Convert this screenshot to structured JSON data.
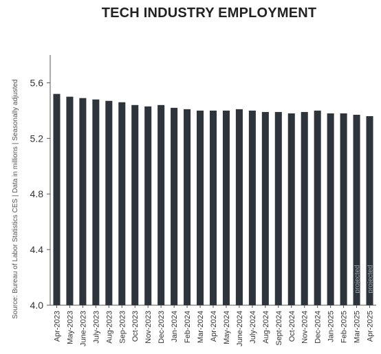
{
  "chart_data": {
    "type": "bar",
    "title": "TECH INDUSTRY EMPLOYMENT",
    "ylabel": "",
    "xlabel": "",
    "side_note": "Source: Bureau of Labor Statistics CES | Data in millions | Seasonally adjusted",
    "ylim": [
      4.0,
      5.8
    ],
    "yticks": [
      "4.0",
      "4.4",
      "4.8",
      "5.2",
      "5.6"
    ],
    "grid": false,
    "bar_color": "#2d343b",
    "categories": [
      "Apr-2023",
      "May-2023",
      "June-2023",
      "July-2023",
      "Aug-2023",
      "Sep-2023",
      "Oct-2023",
      "Nov-2023",
      "Dec-2023",
      "Jan-2024",
      "Feb-2024",
      "Mar-2024",
      "Apr-2024",
      "May-2024",
      "June-2024",
      "July-2024",
      "Aug-2024",
      "Sept-2024",
      "Oct-2024",
      "Nov-2024",
      "Dec-2024",
      "Jan-2025",
      "Feb-2025",
      "Mar-2025",
      "Apr-2025"
    ],
    "values": [
      5.52,
      5.5,
      5.49,
      5.48,
      5.47,
      5.46,
      5.44,
      5.43,
      5.44,
      5.42,
      5.41,
      5.4,
      5.4,
      5.4,
      5.41,
      5.4,
      5.39,
      5.39,
      5.38,
      5.39,
      5.4,
      5.38,
      5.38,
      5.37,
      5.36
    ],
    "bar_annotations": [
      {
        "index": 23,
        "text": "projected"
      },
      {
        "index": 24,
        "text": "projected"
      }
    ]
  }
}
